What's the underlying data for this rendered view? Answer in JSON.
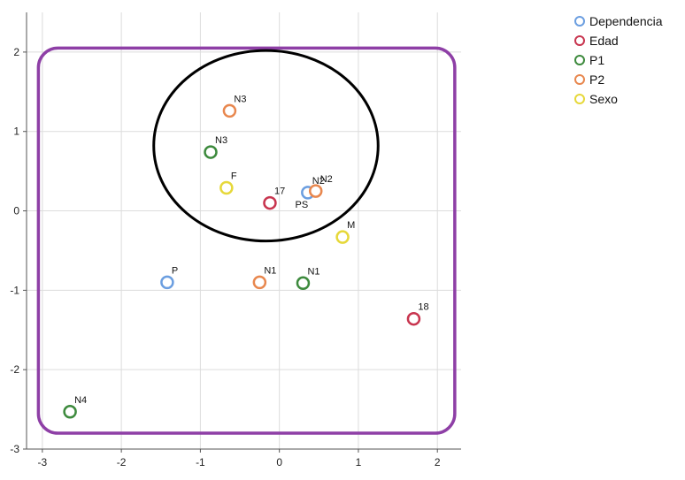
{
  "chart_data": {
    "type": "scatter",
    "title": "",
    "xlabel": "",
    "ylabel": "",
    "xlim": [
      -3.2,
      2.3
    ],
    "ylim": [
      -3,
      2.5
    ],
    "x_ticks": [
      -3,
      -2,
      -1,
      0,
      1,
      2
    ],
    "y_ticks": [
      -3,
      -2,
      -1,
      0,
      1,
      2
    ],
    "grid": true,
    "legend_position": "top-right",
    "series": [
      {
        "name": "Dependencia",
        "color": "#6b9ee0",
        "points": [
          {
            "x": 0.36,
            "y": 0.23,
            "label": "N2"
          },
          {
            "x": -1.42,
            "y": -0.9,
            "label": "P"
          }
        ]
      },
      {
        "name": "Edad",
        "color": "#c8354f",
        "points": [
          {
            "x": -0.12,
            "y": 0.1,
            "label": "17"
          },
          {
            "x": 1.7,
            "y": -1.36,
            "label": "18"
          }
        ]
      },
      {
        "name": "P1",
        "color": "#3d8a3d",
        "points": [
          {
            "x": -0.87,
            "y": 0.74,
            "label": "N3"
          },
          {
            "x": 0.3,
            "y": -0.91,
            "label": "N1"
          },
          {
            "x": -2.65,
            "y": -2.53,
            "label": "N4"
          }
        ]
      },
      {
        "name": "P2",
        "color": "#e8874e",
        "points": [
          {
            "x": -0.63,
            "y": 1.26,
            "label": "N3"
          },
          {
            "x": 0.46,
            "y": 0.25,
            "label": "N2"
          },
          {
            "x": -0.25,
            "y": -0.9,
            "label": "N1"
          }
        ]
      },
      {
        "name": "Sexo",
        "color": "#e6d83a",
        "points": [
          {
            "x": -0.67,
            "y": 0.29,
            "label": "F"
          },
          {
            "x": 0.8,
            "y": -0.33,
            "label": "M"
          }
        ]
      }
    ],
    "extra_labels": [
      {
        "text": "PS",
        "x": 0.2,
        "y": 0.04
      }
    ],
    "annotations": {
      "ellipse": {
        "center": [
          -0.17,
          0.82
        ],
        "rx": 1.42,
        "ry": 1.2,
        "color": "#000000"
      },
      "rounded_rect": {
        "x1": -3.05,
        "y1": -2.8,
        "x2": 2.22,
        "y2": 2.05,
        "color": "#8e3fa6"
      }
    }
  }
}
